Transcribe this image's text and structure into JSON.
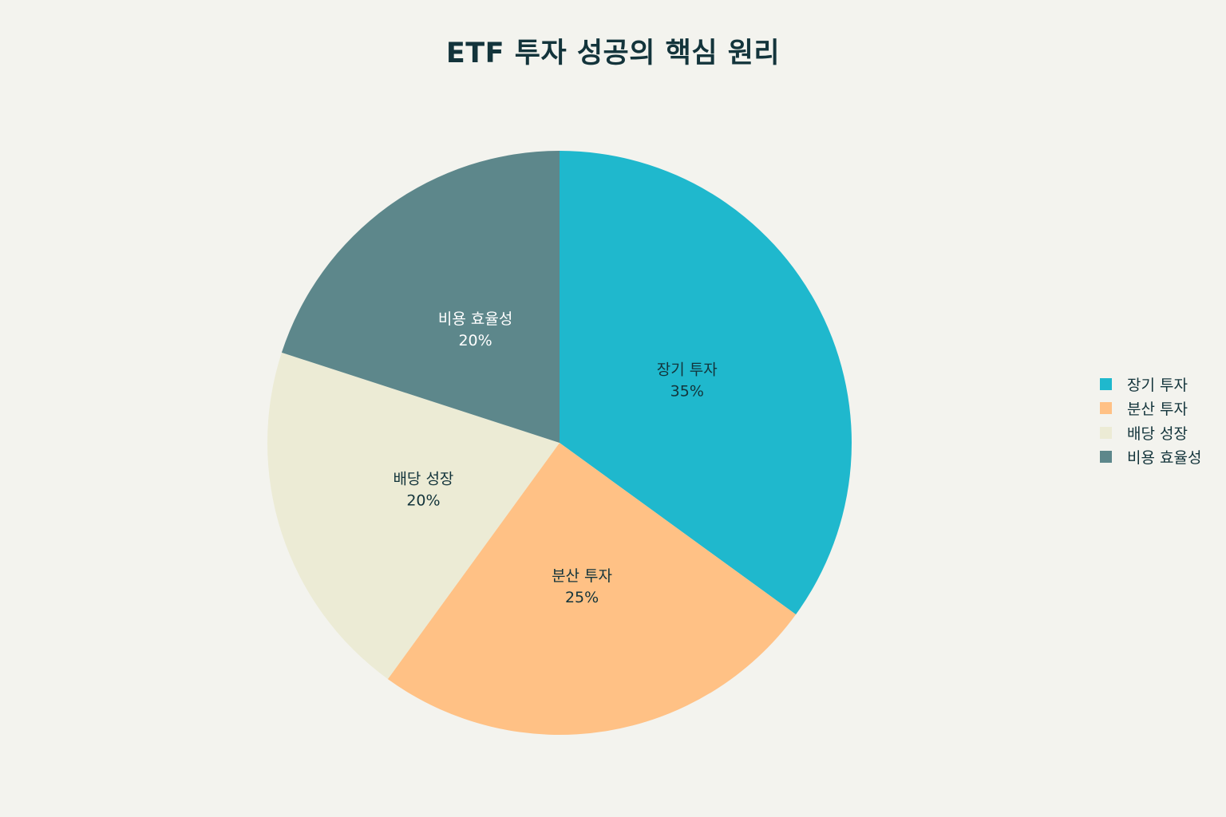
{
  "chart_data": {
    "type": "pie",
    "title": "ETF 투자 성공의 핵심 원리",
    "slices": [
      {
        "label": "장기 투자",
        "value": 35,
        "percent_label": "35%",
        "color": "#1fb8cd",
        "text_color": "#13343b"
      },
      {
        "label": "분산 투자",
        "value": 25,
        "percent_label": "25%",
        "color": "#ffc185",
        "text_color": "#13343b"
      },
      {
        "label": "배당 성장",
        "value": 20,
        "percent_label": "20%",
        "color": "#eceBd5",
        "text_color": "#13343b"
      },
      {
        "label": "비용 효율성",
        "value": 20,
        "percent_label": "20%",
        "color": "#5d878b",
        "text_color": "#ffffff"
      }
    ],
    "legend_position": "right",
    "direction": "clockwise",
    "start_angle": "12 o'clock"
  }
}
